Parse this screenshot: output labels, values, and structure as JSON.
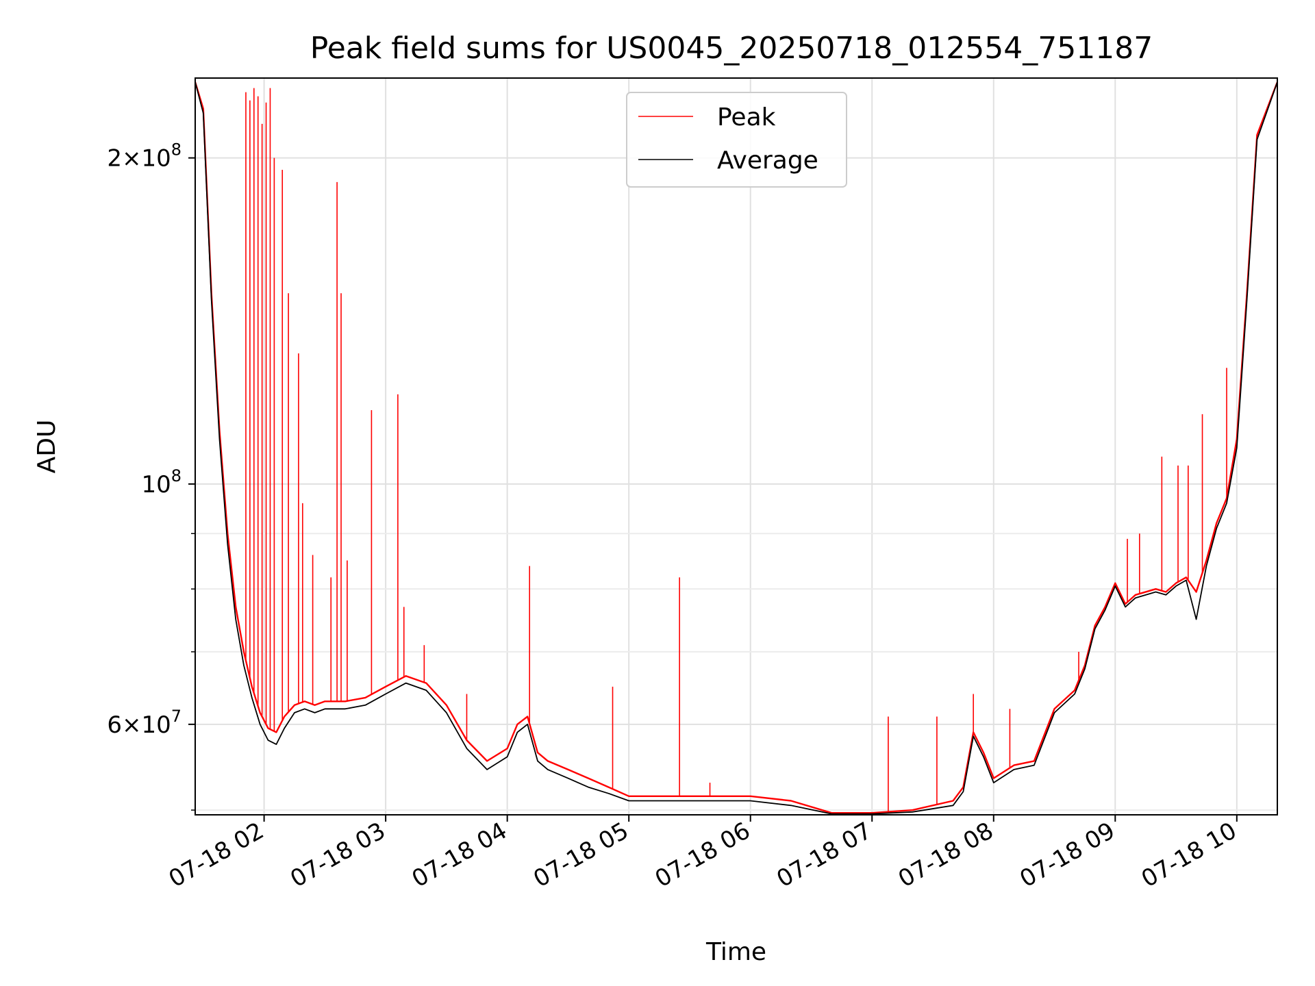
{
  "chart_data": {
    "type": "line",
    "title": "Peak field sums for US0045_20250718_012554_751187",
    "xlabel": "Time",
    "ylabel": "ADU",
    "y_scale": "log",
    "ylim": [
      49500000,
      237000000
    ],
    "xlim": [
      "2025-07-18 01:26",
      "2025-07-18 10:20"
    ],
    "grid": true,
    "legend_position": "top-center",
    "x_ticks": [
      {
        "value": "2025-07-18 02:00",
        "label": "07-18 02"
      },
      {
        "value": "2025-07-18 03:00",
        "label": "07-18 03"
      },
      {
        "value": "2025-07-18 04:00",
        "label": "07-18 04"
      },
      {
        "value": "2025-07-18 05:00",
        "label": "07-18 05"
      },
      {
        "value": "2025-07-18 06:00",
        "label": "07-18 06"
      },
      {
        "value": "2025-07-18 07:00",
        "label": "07-18 07"
      },
      {
        "value": "2025-07-18 08:00",
        "label": "07-18 08"
      },
      {
        "value": "2025-07-18 09:00",
        "label": "07-18 09"
      },
      {
        "value": "2025-07-18 10:00",
        "label": "07-18 10"
      }
    ],
    "y_major_ticks": [
      {
        "value": 60000000,
        "mantissa": "6",
        "base": "10",
        "exp": "7"
      },
      {
        "value": 100000000,
        "mantissa": "",
        "base": "10",
        "exp": "8"
      },
      {
        "value": 200000000,
        "mantissa": "2",
        "base": "10",
        "exp": "8"
      }
    ],
    "y_minor_ticks": [
      50000000,
      70000000,
      80000000,
      90000000
    ],
    "series": [
      {
        "name": "Peak",
        "color": "#ff0000",
        "x": [
          "2025-07-18 01:26",
          "2025-07-18 01:30",
          "2025-07-18 01:34",
          "2025-07-18 01:38",
          "2025-07-18 01:42",
          "2025-07-18 01:46",
          "2025-07-18 01:50",
          "2025-07-18 01:54",
          "2025-07-18 01:58",
          "2025-07-18 02:02",
          "2025-07-18 02:06",
          "2025-07-18 02:10",
          "2025-07-18 02:15",
          "2025-07-18 02:20",
          "2025-07-18 02:25",
          "2025-07-18 02:30",
          "2025-07-18 02:40",
          "2025-07-18 02:50",
          "2025-07-18 03:00",
          "2025-07-18 03:10",
          "2025-07-18 03:20",
          "2025-07-18 03:30",
          "2025-07-18 03:40",
          "2025-07-18 03:50",
          "2025-07-18 04:00",
          "2025-07-18 04:05",
          "2025-07-18 04:10",
          "2025-07-18 04:15",
          "2025-07-18 04:20",
          "2025-07-18 04:30",
          "2025-07-18 04:40",
          "2025-07-18 04:50",
          "2025-07-18 05:00",
          "2025-07-18 05:20",
          "2025-07-18 05:40",
          "2025-07-18 06:00",
          "2025-07-18 06:20",
          "2025-07-18 06:40",
          "2025-07-18 06:50",
          "2025-07-18 07:00",
          "2025-07-18 07:20",
          "2025-07-18 07:40",
          "2025-07-18 07:45",
          "2025-07-18 07:50",
          "2025-07-18 07:55",
          "2025-07-18 08:00",
          "2025-07-18 08:10",
          "2025-07-18 08:20",
          "2025-07-18 08:30",
          "2025-07-18 08:40",
          "2025-07-18 08:45",
          "2025-07-18 08:50",
          "2025-07-18 08:55",
          "2025-07-18 09:00",
          "2025-07-18 09:05",
          "2025-07-18 09:10",
          "2025-07-18 09:20",
          "2025-07-18 09:25",
          "2025-07-18 09:30",
          "2025-07-18 09:35",
          "2025-07-18 09:40",
          "2025-07-18 09:45",
          "2025-07-18 09:50",
          "2025-07-18 09:55",
          "2025-07-18 10:00",
          "2025-07-18 10:05",
          "2025-07-18 10:10",
          "2025-07-18 10:20"
        ],
        "y": [
          235000000,
          222000000,
          150000000,
          112000000,
          90000000,
          77000000,
          70000000,
          65000000,
          61500000,
          59500000,
          59000000,
          61000000,
          62500000,
          63000000,
          62500000,
          63000000,
          63000000,
          63500000,
          65000000,
          66500000,
          65500000,
          62500000,
          58000000,
          55500000,
          57000000,
          60000000,
          61000000,
          56500000,
          55500000,
          54500000,
          53500000,
          52500000,
          51500000,
          51500000,
          51500000,
          51500000,
          51000000,
          49700000,
          49700000,
          49700000,
          50000000,
          51000000,
          52500000,
          59000000,
          56500000,
          53500000,
          55000000,
          55500000,
          62000000,
          64500000,
          68000000,
          74000000,
          77000000,
          81000000,
          77500000,
          79000000,
          80000000,
          79500000,
          81000000,
          82000000,
          79500000,
          85000000,
          92000000,
          97000000,
          110000000,
          150000000,
          210000000,
          235000000
        ]
      },
      {
        "name": "Average",
        "color": "#000000",
        "x": [
          "2025-07-18 01:26",
          "2025-07-18 01:30",
          "2025-07-18 01:34",
          "2025-07-18 01:38",
          "2025-07-18 01:42",
          "2025-07-18 01:46",
          "2025-07-18 01:50",
          "2025-07-18 01:54",
          "2025-07-18 01:58",
          "2025-07-18 02:02",
          "2025-07-18 02:06",
          "2025-07-18 02:10",
          "2025-07-18 02:15",
          "2025-07-18 02:20",
          "2025-07-18 02:25",
          "2025-07-18 02:30",
          "2025-07-18 02:40",
          "2025-07-18 02:50",
          "2025-07-18 03:00",
          "2025-07-18 03:10",
          "2025-07-18 03:20",
          "2025-07-18 03:30",
          "2025-07-18 03:40",
          "2025-07-18 03:50",
          "2025-07-18 04:00",
          "2025-07-18 04:05",
          "2025-07-18 04:10",
          "2025-07-18 04:15",
          "2025-07-18 04:20",
          "2025-07-18 04:30",
          "2025-07-18 04:40",
          "2025-07-18 04:50",
          "2025-07-18 05:00",
          "2025-07-18 05:20",
          "2025-07-18 05:40",
          "2025-07-18 06:00",
          "2025-07-18 06:20",
          "2025-07-18 06:40",
          "2025-07-18 06:50",
          "2025-07-18 07:00",
          "2025-07-18 07:20",
          "2025-07-18 07:40",
          "2025-07-18 07:45",
          "2025-07-18 07:50",
          "2025-07-18 07:55",
          "2025-07-18 08:00",
          "2025-07-18 08:10",
          "2025-07-18 08:20",
          "2025-07-18 08:30",
          "2025-07-18 08:40",
          "2025-07-18 08:45",
          "2025-07-18 08:50",
          "2025-07-18 08:55",
          "2025-07-18 09:00",
          "2025-07-18 09:05",
          "2025-07-18 09:10",
          "2025-07-18 09:20",
          "2025-07-18 09:25",
          "2025-07-18 09:30",
          "2025-07-18 09:35",
          "2025-07-18 09:40",
          "2025-07-18 09:45",
          "2025-07-18 09:50",
          "2025-07-18 09:55",
          "2025-07-18 10:00",
          "2025-07-18 10:05",
          "2025-07-18 10:10",
          "2025-07-18 10:20"
        ],
        "y": [
          235000000,
          220000000,
          148000000,
          110000000,
          88000000,
          75000000,
          68000000,
          63500000,
          60000000,
          58000000,
          57500000,
          59500000,
          61500000,
          62000000,
          61500000,
          62000000,
          62000000,
          62500000,
          64000000,
          65500000,
          64500000,
          61500000,
          57000000,
          54500000,
          56000000,
          59000000,
          60000000,
          55500000,
          54500000,
          53500000,
          52500000,
          51800000,
          51000000,
          51000000,
          51000000,
          51000000,
          50500000,
          49600000,
          49600000,
          49600000,
          49800000,
          50500000,
          52000000,
          58500000,
          56000000,
          53000000,
          54500000,
          55000000,
          61500000,
          64000000,
          67500000,
          73500000,
          76500000,
          80500000,
          77000000,
          78500000,
          79500000,
          79000000,
          80500000,
          81500000,
          75000000,
          84000000,
          91000000,
          96000000,
          108000000,
          148000000,
          208000000,
          235000000
        ]
      }
    ],
    "peak_spikes": [
      {
        "x": "2025-07-18 01:51",
        "y": 230000000
      },
      {
        "x": "2025-07-18 01:53",
        "y": 226000000
      },
      {
        "x": "2025-07-18 01:55",
        "y": 232000000
      },
      {
        "x": "2025-07-18 01:57",
        "y": 228000000
      },
      {
        "x": "2025-07-18 01:59",
        "y": 215000000
      },
      {
        "x": "2025-07-18 02:01",
        "y": 225000000
      },
      {
        "x": "2025-07-18 02:03",
        "y": 232000000
      },
      {
        "x": "2025-07-18 02:05",
        "y": 200000000
      },
      {
        "x": "2025-07-18 02:09",
        "y": 195000000
      },
      {
        "x": "2025-07-18 02:12",
        "y": 150000000
      },
      {
        "x": "2025-07-18 02:17",
        "y": 132000000
      },
      {
        "x": "2025-07-18 02:19",
        "y": 96000000
      },
      {
        "x": "2025-07-18 02:24",
        "y": 86000000
      },
      {
        "x": "2025-07-18 02:33",
        "y": 82000000
      },
      {
        "x": "2025-07-18 02:36",
        "y": 190000000
      },
      {
        "x": "2025-07-18 02:38",
        "y": 150000000
      },
      {
        "x": "2025-07-18 02:41",
        "y": 85000000
      },
      {
        "x": "2025-07-18 02:53",
        "y": 117000000
      },
      {
        "x": "2025-07-18 03:06",
        "y": 121000000
      },
      {
        "x": "2025-07-18 03:09",
        "y": 77000000
      },
      {
        "x": "2025-07-18 03:19",
        "y": 71000000
      },
      {
        "x": "2025-07-18 03:40",
        "y": 64000000
      },
      {
        "x": "2025-07-18 04:11",
        "y": 84000000
      },
      {
        "x": "2025-07-18 04:52",
        "y": 65000000
      },
      {
        "x": "2025-07-18 05:25",
        "y": 82000000
      },
      {
        "x": "2025-07-18 05:40",
        "y": 53000000
      },
      {
        "x": "2025-07-18 07:08",
        "y": 61000000
      },
      {
        "x": "2025-07-18 07:32",
        "y": 61000000
      },
      {
        "x": "2025-07-18 07:50",
        "y": 64000000
      },
      {
        "x": "2025-07-18 08:08",
        "y": 62000000
      },
      {
        "x": "2025-07-18 08:42",
        "y": 70000000
      },
      {
        "x": "2025-07-18 09:06",
        "y": 89000000
      },
      {
        "x": "2025-07-18 09:12",
        "y": 90000000
      },
      {
        "x": "2025-07-18 09:23",
        "y": 106000000
      },
      {
        "x": "2025-07-18 09:31",
        "y": 104000000
      },
      {
        "x": "2025-07-18 09:36",
        "y": 104000000
      },
      {
        "x": "2025-07-18 09:43",
        "y": 116000000
      },
      {
        "x": "2025-07-18 09:55",
        "y": 128000000
      }
    ]
  }
}
